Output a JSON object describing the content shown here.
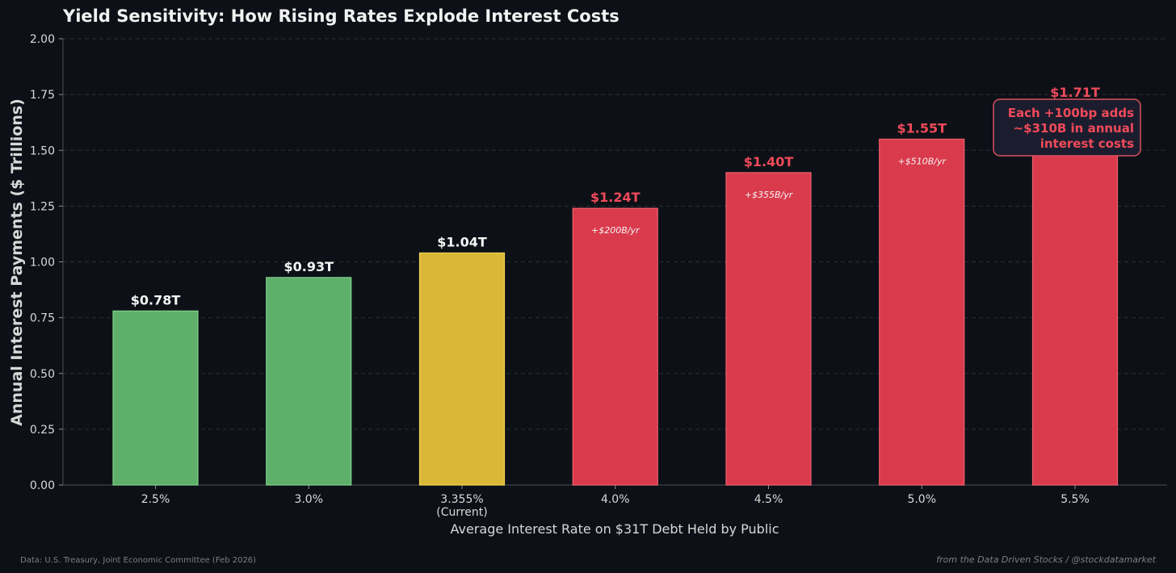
{
  "colors": {
    "background": "#0d1117",
    "green": "#5eaf6a",
    "green_edge": "#7fd18a",
    "yellow": "#d9b838",
    "yellow_edge": "#f2d250",
    "red": "#d93a4c",
    "red_edge": "#f06070",
    "label_white": "#f5f5f5",
    "label_red": "#f04a5a",
    "grid": "#2a2f37"
  },
  "chart_data": {
    "type": "bar",
    "title": "Yield Sensitivity: How Rising Rates Explode Interest Costs",
    "xlabel": "Average Interest Rate on $31T Debt Held by Public",
    "ylabel": "Annual Interest Payments ($ Trillions)",
    "ylim": [
      0,
      2.0
    ],
    "yticks": [
      "0.00",
      "0.25",
      "0.50",
      "0.75",
      "1.00",
      "1.25",
      "1.50",
      "1.75",
      "2.00"
    ],
    "grid": true,
    "categories": [
      "2.5%",
      "3.0%",
      "3.355%",
      "4.0%",
      "4.5%",
      "5.0%",
      "5.5%"
    ],
    "category_sublabels": [
      "",
      "",
      "(Current)",
      "",
      "",
      "",
      ""
    ],
    "values": [
      0.78,
      0.93,
      1.04,
      1.24,
      1.4,
      1.55,
      1.71
    ],
    "value_labels": [
      "$0.78T",
      "$0.93T",
      "$1.04T",
      "$1.24T",
      "$1.40T",
      "$1.55T",
      "$1.71T"
    ],
    "bar_colors": [
      "green",
      "green",
      "yellow",
      "red",
      "red",
      "red",
      "red"
    ],
    "deltas": [
      "",
      "",
      "",
      "+$200B/yr",
      "+$355B/yr",
      "+$510B/yr",
      ""
    ],
    "annotation": [
      "Each +100bp adds",
      "~$310B in annual",
      "interest costs"
    ]
  },
  "footer": {
    "source": "Data: U.S. Treasury, Joint Economic Committee (Feb 2026)",
    "credit": "from the Data Driven Stocks / @stockdatamarket"
  }
}
